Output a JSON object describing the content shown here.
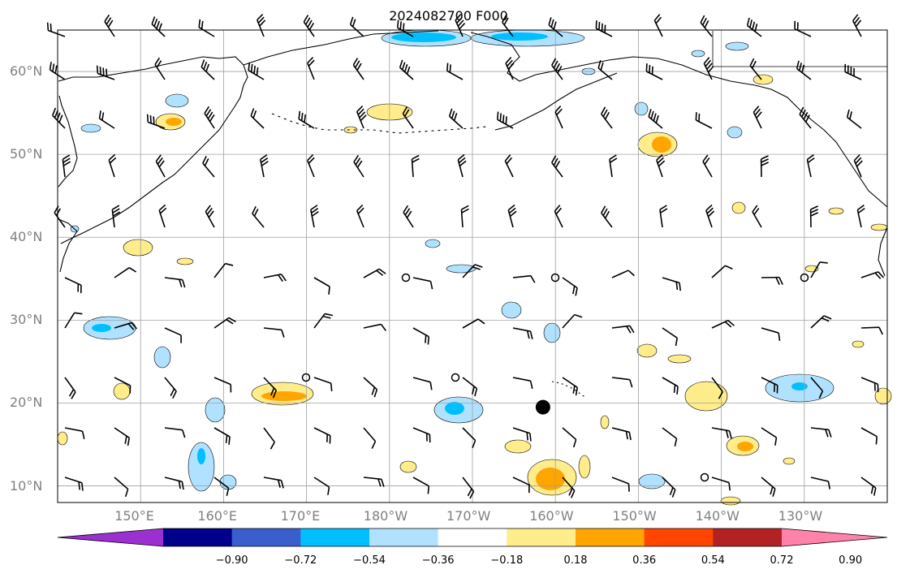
{
  "title": "2024082700 F000",
  "map": {
    "lon_range": [
      140,
      240
    ],
    "lat_range": [
      8,
      65
    ],
    "lat_labels": [
      "10°N",
      "20°N",
      "30°N",
      "40°N",
      "50°N",
      "60°N"
    ],
    "lat_values": [
      10,
      20,
      30,
      40,
      50,
      60
    ],
    "lon_labels": [
      "150°E",
      "160°E",
      "170°E",
      "180°W",
      "170°W",
      "160°W",
      "150°W",
      "140°W",
      "130°W"
    ],
    "lon_values": [
      150,
      160,
      170,
      180,
      190,
      200,
      210,
      220,
      230
    ],
    "storm_marker": {
      "lon": 198.5,
      "lat": 19.5
    }
  },
  "colorbar": {
    "labels": [
      "−0.90",
      "−0.72",
      "−0.54",
      "−0.36",
      "−0.18",
      "0.18",
      "0.36",
      "0.54",
      "0.72",
      "0.90"
    ],
    "colors": [
      "#9b30d0",
      "#00008b",
      "#3a5fcd",
      "#00bfff",
      "#b0e2ff",
      "#ffffff",
      "#ffec8b",
      "#ffa500",
      "#ff4500",
      "#b22222",
      "#ff82ab"
    ]
  },
  "colors": {
    "land_line": "#000000",
    "grid": "#a0a0a0",
    "shade_positive_1": "#ffec8b",
    "shade_positive_2": "#ffa500",
    "shade_negative_1": "#b0e2ff",
    "shade_negative_2": "#00bfff"
  }
}
